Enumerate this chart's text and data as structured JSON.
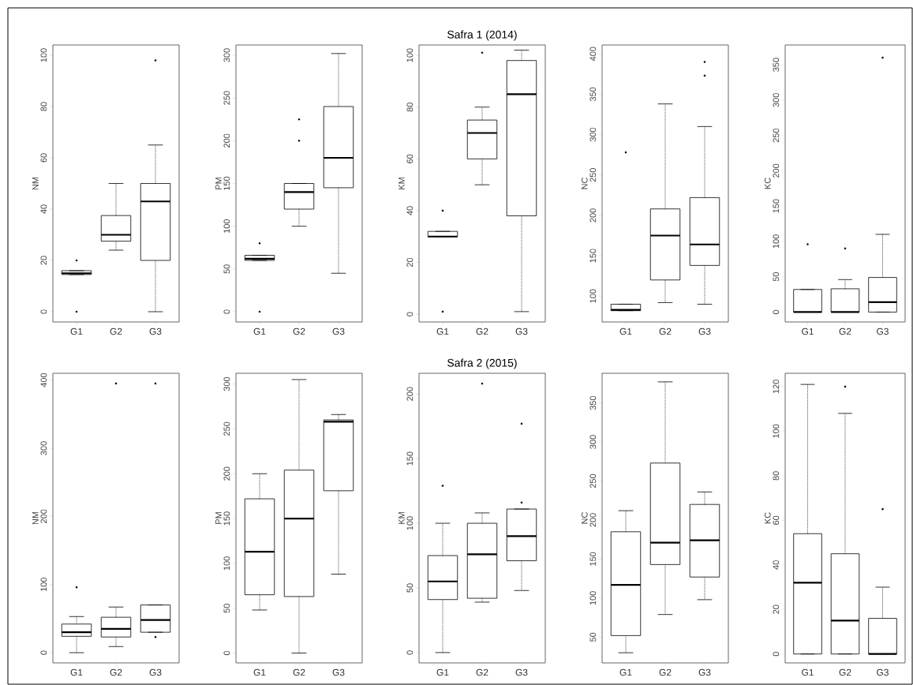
{
  "chart_data": [
    {
      "type": "box",
      "ylabel": "NM",
      "categories": [
        "G1",
        "G2",
        "G3"
      ],
      "ylim": [
        -4,
        104
      ],
      "yticks": [
        0,
        20,
        40,
        60,
        80,
        100
      ],
      "boxes": [
        {
          "low": 14.5,
          "q1": 14.5,
          "median": 15,
          "q3": 16,
          "high": 16,
          "outliers": [
            0,
            20
          ]
        },
        {
          "low": 24,
          "q1": 27.5,
          "median": 30,
          "q3": 37.5,
          "high": 50
        },
        {
          "low": 0,
          "q1": 20,
          "median": 43,
          "q3": 50,
          "high": 65,
          "outliers": [
            98
          ]
        }
      ]
    },
    {
      "type": "box",
      "ylabel": "PM",
      "categories": [
        "G1",
        "G2",
        "G3"
      ],
      "ylim": [
        -12,
        312
      ],
      "yticks": [
        0,
        50,
        100,
        150,
        200,
        250,
        300
      ],
      "boxes": [
        {
          "low": 60,
          "q1": 60,
          "median": 62,
          "q3": 66,
          "high": 66,
          "outliers": [
            0,
            80
          ]
        },
        {
          "low": 100,
          "q1": 120,
          "median": 140,
          "q3": 150,
          "high": 150,
          "outliers": [
            200,
            225
          ]
        },
        {
          "low": 45,
          "q1": 145,
          "median": 180,
          "q3": 240,
          "high": 302
        }
      ]
    },
    {
      "type": "box",
      "title": "Safra 1 (2014)",
      "ylabel": "KM",
      "categories": [
        "G1",
        "G2",
        "G3"
      ],
      "ylim": [
        -3,
        104
      ],
      "yticks": [
        0,
        20,
        40,
        60,
        80,
        100
      ],
      "boxes": [
        {
          "low": 30,
          "q1": 30,
          "median": 30,
          "q3": 32,
          "high": 32,
          "outliers": [
            1,
            40
          ]
        },
        {
          "low": 50,
          "q1": 60,
          "median": 70,
          "q3": 75,
          "high": 80,
          "outliers": [
            101
          ]
        },
        {
          "low": 1,
          "q1": 38,
          "median": 85,
          "q3": 98,
          "high": 102
        }
      ]
    },
    {
      "type": "box",
      "ylabel": "NC",
      "categories": [
        "G1",
        "G2",
        "G3"
      ],
      "ylim": [
        68,
        411
      ],
      "yticks": [
        100,
        150,
        200,
        250,
        300,
        350,
        400
      ],
      "boxes": [
        {
          "low": 82,
          "q1": 82,
          "median": 83,
          "q3": 90,
          "high": 90,
          "outliers": [
            278
          ]
        },
        {
          "low": 92,
          "q1": 120,
          "median": 175,
          "q3": 208,
          "high": 338
        },
        {
          "low": 90,
          "q1": 138,
          "median": 164,
          "q3": 222,
          "high": 310,
          "outliers": [
            373,
            390
          ]
        }
      ]
    },
    {
      "type": "box",
      "ylabel": "KC",
      "categories": [
        "G1",
        "G2",
        "G3"
      ],
      "ylim": [
        -14,
        378
      ],
      "yticks": [
        0,
        50,
        100,
        150,
        200,
        250,
        300,
        350
      ],
      "boxes": [
        {
          "low": 0,
          "q1": 0,
          "median": 0,
          "q3": 32,
          "high": 32,
          "outliers": [
            96
          ]
        },
        {
          "low": 0,
          "q1": 0,
          "median": 0,
          "q3": 33,
          "high": 46,
          "outliers": [
            90
          ]
        },
        {
          "low": 0,
          "q1": 0,
          "median": 14,
          "q3": 49,
          "high": 110,
          "outliers": [
            360
          ]
        }
      ]
    },
    {
      "type": "box",
      "ylabel": "NM",
      "categories": [
        "G1",
        "G2",
        "G3"
      ],
      "ylim": [
        -15,
        410
      ],
      "yticks": [
        0,
        100,
        200,
        300,
        400
      ],
      "boxes": [
        {
          "low": 0,
          "q1": 24,
          "median": 30,
          "q3": 42,
          "high": 53,
          "outliers": [
            96
          ]
        },
        {
          "low": 9,
          "q1": 23,
          "median": 35,
          "q3": 52,
          "high": 67,
          "outliers": [
            395
          ]
        },
        {
          "low": 30,
          "q1": 30,
          "median": 48,
          "q3": 70,
          "high": 70,
          "outliers": [
            23,
            395
          ]
        }
      ]
    },
    {
      "type": "box",
      "ylabel": "PM",
      "categories": [
        "G1",
        "G2",
        "G3"
      ],
      "ylim": [
        -11,
        312
      ],
      "yticks": [
        0,
        50,
        100,
        150,
        200,
        250,
        300
      ],
      "boxes": [
        {
          "low": 48,
          "q1": 65,
          "median": 113,
          "q3": 172,
          "high": 200
        },
        {
          "low": 0,
          "q1": 63,
          "median": 150,
          "q3": 204,
          "high": 305
        },
        {
          "low": 88,
          "q1": 181,
          "median": 258,
          "q3": 260,
          "high": 266
        }
      ]
    },
    {
      "type": "box",
      "title": "Safra 2 (2015)",
      "ylabel": "KM",
      "categories": [
        "G1",
        "G2",
        "G3"
      ],
      "ylim": [
        -8,
        216
      ],
      "yticks": [
        0,
        50,
        100,
        150,
        200
      ],
      "boxes": [
        {
          "low": 0,
          "q1": 41,
          "median": 55,
          "q3": 75,
          "high": 100,
          "outliers": [
            129
          ]
        },
        {
          "low": 39,
          "q1": 42,
          "median": 76,
          "q3": 100,
          "high": 108,
          "outliers": [
            208
          ]
        },
        {
          "low": 48,
          "q1": 71,
          "median": 90,
          "q3": 111,
          "high": 111,
          "outliers": [
            116,
            177
          ]
        }
      ]
    },
    {
      "type": "box",
      "ylabel": "NC",
      "categories": [
        "G1",
        "G2",
        "G3"
      ],
      "ylim": [
        17,
        388
      ],
      "yticks": [
        50,
        100,
        150,
        200,
        250,
        300,
        350
      ],
      "boxes": [
        {
          "low": 30,
          "q1": 52,
          "median": 117,
          "q3": 185,
          "high": 212
        },
        {
          "low": 79,
          "q1": 143,
          "median": 171,
          "q3": 273,
          "high": 377
        },
        {
          "low": 98,
          "q1": 127,
          "median": 174,
          "q3": 220,
          "high": 236
        }
      ]
    },
    {
      "type": "box",
      "ylabel": "KC",
      "categories": [
        "G1",
        "G2",
        "G3"
      ],
      "ylim": [
        -4,
        126
      ],
      "yticks": [
        0,
        20,
        40,
        60,
        80,
        100,
        120
      ],
      "boxes": [
        {
          "low": 0,
          "q1": 0,
          "median": 32,
          "q3": 54,
          "high": 121
        },
        {
          "low": 0,
          "q1": 0,
          "median": 15,
          "q3": 45,
          "high": 108,
          "outliers": [
            120
          ]
        },
        {
          "low": 0,
          "q1": 0,
          "median": 0,
          "q3": 16,
          "high": 30,
          "outliers": [
            65
          ]
        }
      ]
    }
  ]
}
